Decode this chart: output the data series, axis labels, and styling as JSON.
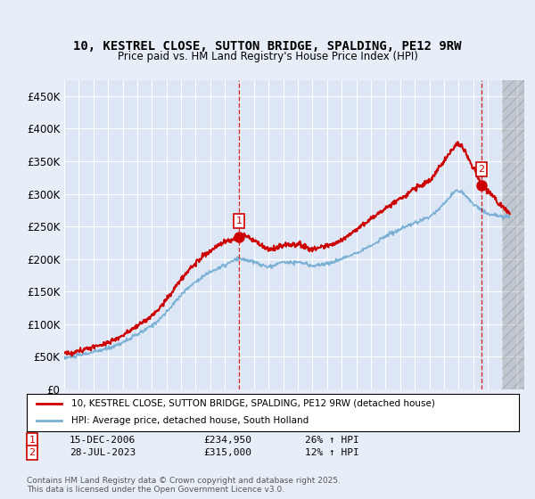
{
  "title": "10, KESTREL CLOSE, SUTTON BRIDGE, SPALDING, PE12 9RW",
  "subtitle": "Price paid vs. HM Land Registry's House Price Index (HPI)",
  "background_color": "#e8eef8",
  "plot_bg_color": "#dde6f5",
  "ylabel": "",
  "xlabel": "",
  "ylim": [
    0,
    475000
  ],
  "yticks": [
    0,
    50000,
    100000,
    150000,
    200000,
    250000,
    300000,
    350000,
    400000,
    450000
  ],
  "ytick_labels": [
    "£0",
    "£50K",
    "£100K",
    "£150K",
    "£200K",
    "£250K",
    "£300K",
    "£350K",
    "£400K",
    "£450K"
  ],
  "legend_entries": [
    "10, KESTREL CLOSE, SUTTON BRIDGE, SPALDING, PE12 9RW (detached house)",
    "HPI: Average price, detached house, South Holland"
  ],
  "legend_colors": [
    "#cc0000",
    "#7ab0d4"
  ],
  "sale1_date": "15-DEC-2006",
  "sale1_price": "£234,950",
  "sale1_hpi": "26% ↑ HPI",
  "sale1_x": 2006.96,
  "sale1_y": 234950,
  "sale2_date": "28-JUL-2023",
  "sale2_price": "£315,000",
  "sale2_hpi": "12% ↑ HPI",
  "sale2_x": 2023.57,
  "sale2_y": 315000,
  "footer": "Contains HM Land Registry data © Crown copyright and database right 2025.\nThis data is licensed under the Open Government Licence v3.0.",
  "xmin": 1995,
  "xmax": 2026.5
}
